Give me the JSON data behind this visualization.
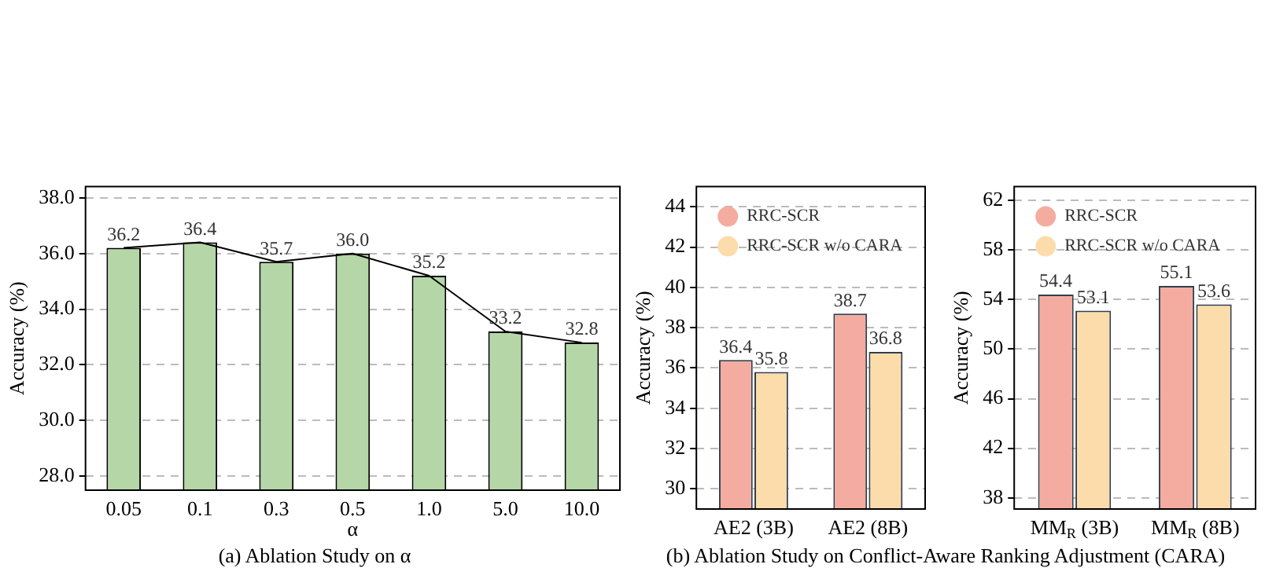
{
  "chart_data": [
    {
      "type": "bar",
      "xlabel": "α",
      "ylabel": "Accuracy (%)",
      "categories": [
        "0.05",
        "0.1",
        "0.3",
        "0.5",
        "1.0",
        "5.0",
        "10.0"
      ],
      "series": [
        {
          "color": "#b5d7a8",
          "values": [
            36.2,
            36.4,
            35.7,
            36.0,
            35.2,
            33.2,
            32.8
          ],
          "value_labels": [
            "36.2",
            "36.4",
            "35.7",
            "36.0",
            "35.2",
            "33.2",
            "32.8"
          ]
        },
        {
          "type": "line",
          "color": "#000000",
          "values": [
            36.2,
            36.4,
            35.7,
            36.0,
            35.2,
            33.2,
            32.8
          ]
        }
      ],
      "ylim": [
        27.5,
        38.4
      ],
      "yticks": [
        {
          "value": 28,
          "label": "28.0"
        },
        {
          "value": 30,
          "label": "30.0"
        },
        {
          "value": 32,
          "label": "32.0"
        },
        {
          "value": 34,
          "label": "34.0"
        },
        {
          "value": 36,
          "label": "36.0"
        },
        {
          "value": 38,
          "label": "38.0"
        }
      ],
      "grid": "y",
      "annotations": [
        "(a) Ablation Study on α"
      ]
    },
    {
      "type": "bar",
      "ylabel": "Accuracy (%)",
      "categories": [
        "AE2 (3B)",
        "AE2 (8B)"
      ],
      "series": [
        {
          "name": "RRC-SCR",
          "color": "#f4aca0",
          "values": [
            36.4,
            38.7
          ]
        },
        {
          "name": "RRC-SCR w/o CARA",
          "color": "#fddcab",
          "values": [
            35.8,
            36.8
          ]
        }
      ],
      "ylim": [
        29,
        45
      ],
      "yticks": [
        30,
        32,
        34,
        36,
        38,
        40,
        42,
        44
      ],
      "grid": "y",
      "legend": "top left",
      "data_labels": true,
      "annotations": [
        "(b) Ablation Study on Conflict-Aware Ranking Adjustment (CARA)"
      ]
    },
    {
      "type": "bar",
      "ylabel": "Accuracy (%)",
      "categories": [
        "MM$_{R}$ (3B)",
        "MM$_{R}$ (8B)"
      ],
      "series": [
        {
          "name": "RRC-SCR",
          "color": "#f4aca0",
          "values": [
            54.4,
            55.1
          ]
        },
        {
          "name": "RRC-SCR w/o CARA",
          "color": "#fddcab",
          "values": [
            53.1,
            53.6
          ]
        }
      ],
      "ylim": [
        37.1,
        63.1
      ],
      "yticks": [
        38,
        42,
        46,
        50,
        54,
        58,
        62
      ],
      "grid": "y",
      "legend": "top left",
      "data_labels": true
    }
  ]
}
